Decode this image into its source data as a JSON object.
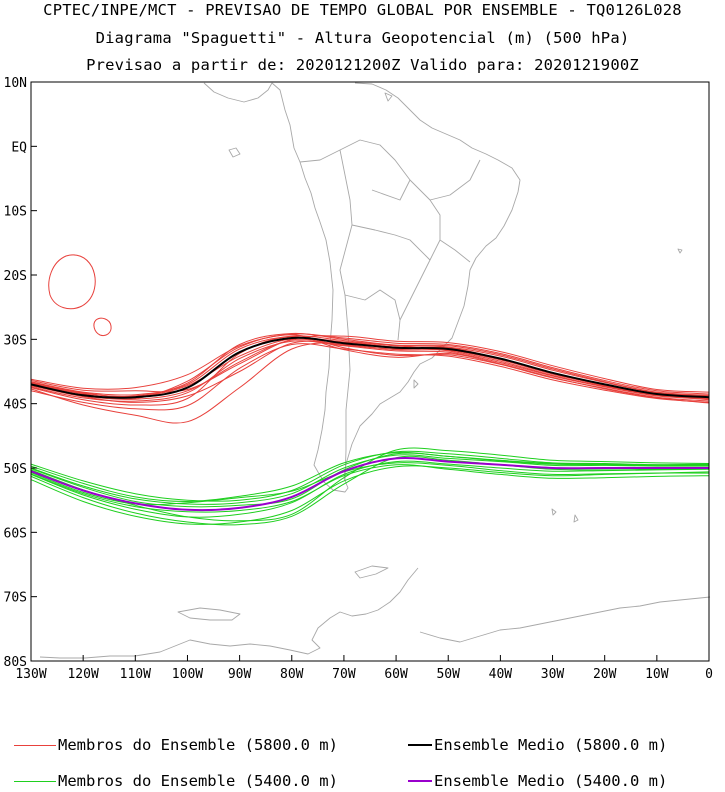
{
  "titles": {
    "line1": "CPTEC/INPE/MCT - PREVISAO DE TEMPO GLOBAL POR ENSEMBLE - TQ0126L028",
    "line2": "Diagrama \"Spaguetti\" - Altura Geopotencial (m) (500 hPa)",
    "line3": "Previsao a partir de: 2020121200Z  Valido para: 2020121900Z"
  },
  "axes": {
    "lat_ticks": [
      "10N",
      "EQ",
      "10S",
      "20S",
      "30S",
      "40S",
      "50S",
      "60S",
      "70S",
      "80S"
    ],
    "lat_values": [
      10,
      0,
      -10,
      -20,
      -30,
      -40,
      -50,
      -60,
      -70,
      -80
    ],
    "lon_ticks": [
      "130W",
      "120W",
      "110W",
      "100W",
      "90W",
      "80W",
      "70W",
      "60W",
      "50W",
      "40W",
      "30W",
      "20W",
      "10W",
      "0"
    ],
    "lon_values": [
      -130,
      -120,
      -110,
      -100,
      -90,
      -80,
      -70,
      -60,
      -50,
      -40,
      -30,
      -20,
      -10,
      0
    ],
    "lon_range": [
      -130,
      0
    ],
    "lat_range": [
      -80,
      10
    ]
  },
  "colors": {
    "member_5800": "#e8413c",
    "mean_5800": "#000000",
    "member_5400": "#1fcf1f",
    "mean_5400": "#9900cc",
    "coast": "#a8a8a8"
  },
  "legend": {
    "members_5800": "Membros do Ensemble (5800.0 m)",
    "mean_5800": "Ensemble Medio (5800.0 m)",
    "members_5400": "Membros do Ensemble (5400.0 m)",
    "mean_5400": "Ensemble Medio (5400.0 m)"
  },
  "chart_data": {
    "type": "line",
    "x": [
      -130,
      -120,
      -110,
      -100,
      -90,
      -80,
      -70,
      -60,
      -50,
      -40,
      -30,
      -20,
      -10,
      0
    ],
    "series": [
      {
        "name": "Ensemble Medio (5800.0 m)",
        "values": [
          -37,
          -38.7,
          -39,
          -37.5,
          -32,
          -29.8,
          -30.6,
          -31.3,
          -31.5,
          -33,
          -35.2,
          -37,
          -38.5,
          -39
        ]
      },
      {
        "name": "Ensemble Medio (5400.0 m)",
        "values": [
          -50.5,
          -53.5,
          -55.5,
          -56.5,
          -56.2,
          -54.5,
          -50.5,
          -48.5,
          -49,
          -49.5,
          -50,
          -50,
          -50,
          -50
        ]
      }
    ],
    "members_5800": [
      [
        -36.6,
        -38.2,
        -38.6,
        -37,
        -31.5,
        -29.5,
        -30.2,
        -31,
        -31.2,
        -32.6,
        -34.8,
        -36.7,
        -38.3,
        -38.8
      ],
      [
        -37.4,
        -39.1,
        -39.6,
        -38.3,
        -33,
        -30.3,
        -31,
        -31.8,
        -32,
        -33.6,
        -35.7,
        -37.4,
        -38.8,
        -39.3
      ],
      [
        -36.2,
        -37.6,
        -37.5,
        -35.5,
        -31,
        -29.2,
        -29.8,
        -30.6,
        -30.8,
        -32.2,
        -34.4,
        -36.4,
        -38,
        -38.5
      ],
      [
        -38,
        -39.8,
        -40.8,
        -40.3,
        -34.5,
        -30.8,
        -31.5,
        -32.3,
        -32.6,
        -34.2,
        -36.3,
        -37.9,
        -39.2,
        -39.8
      ],
      [
        -37.7,
        -40.2,
        -41.8,
        -42.8,
        -37.5,
        -31.5,
        -30.5,
        -31,
        -31.8,
        -33.4,
        -35.6,
        -37.3,
        -38.7,
        -39.2
      ],
      [
        -36.9,
        -38.5,
        -39.2,
        -36.5,
        -31.2,
        -29.3,
        -31.3,
        -32.5,
        -32.4,
        -33.9,
        -36,
        -37.6,
        -39,
        -39.6
      ],
      [
        -36.4,
        -37.9,
        -38,
        -37.8,
        -33.8,
        -30,
        -29.5,
        -30.3,
        -30.5,
        -31.9,
        -34.1,
        -36.1,
        -37.8,
        -38.2
      ],
      [
        -37.2,
        -38.9,
        -39.8,
        -38.8,
        -35,
        -30.6,
        -30.8,
        -31.6,
        -31.7,
        -33.2,
        -35.4,
        -37.1,
        -38.6,
        -39.4
      ],
      [
        -37.5,
        -39.4,
        -40.2,
        -39.2,
        -32.2,
        -29.6,
        -31.6,
        -32.8,
        -32.2,
        -33.8,
        -35.9,
        -37.7,
        -39.1,
        -39.9
      ],
      [
        -36.8,
        -38.4,
        -38.8,
        -36.8,
        -30.8,
        -29.1,
        -30,
        -30.9,
        -31,
        -32.4,
        -34.6,
        -36.6,
        -38.2,
        -38.7
      ],
      [
        -37.1,
        -38.8,
        -39.3,
        -38,
        -33.5,
        -30.1,
        -30.9,
        -31.5,
        -31.3,
        -33,
        -35.2,
        -37,
        -38.5,
        -39.1
      ],
      [
        -36.7,
        -38.3,
        -38.9,
        -37.2,
        -32.6,
        -29.9,
        -30.4,
        -31.2,
        -31.6,
        -33.1,
        -35.3,
        -37.2,
        -38.6,
        -39
      ]
    ],
    "members_5400": [
      [
        -50,
        -52.8,
        -54.8,
        -55.6,
        -55.4,
        -54,
        -50,
        -48,
        -48.5,
        -49,
        -49.6,
        -49.6,
        -49.7,
        -49.7
      ],
      [
        -51,
        -54.2,
        -56.4,
        -57.6,
        -57.2,
        -55.4,
        -51,
        -49,
        -49.4,
        -50,
        -50.5,
        -50.4,
        -50.3,
        -50.2
      ],
      [
        -49.4,
        -52,
        -54,
        -55,
        -55,
        -53.5,
        -49.5,
        -47.5,
        -47.8,
        -48.5,
        -49.2,
        -49.3,
        -49.5,
        -49.5
      ],
      [
        -51.8,
        -55.2,
        -57.5,
        -58.7,
        -58.4,
        -56.6,
        -52,
        -49.8,
        -50,
        -50.7,
        -51.2,
        -51,
        -50.8,
        -50.6
      ],
      [
        -50.3,
        -53.4,
        -55.8,
        -57.6,
        -58.2,
        -57.2,
        -51.5,
        -47.2,
        -47.3,
        -48,
        -48.8,
        -49,
        -49.2,
        -49.3
      ],
      [
        -50.7,
        -53.8,
        -55.6,
        -55.4,
        -54.6,
        -53.6,
        -50.6,
        -49.2,
        -49.6,
        -50.4,
        -51,
        -50.9,
        -50.8,
        -50.8
      ],
      [
        -49.7,
        -52.4,
        -54.5,
        -55.2,
        -54.4,
        -52.8,
        -49.2,
        -47.6,
        -48.2,
        -48.9,
        -49.4,
        -49.5,
        -49.6,
        -49.6
      ],
      [
        -51.3,
        -54.6,
        -57,
        -58.4,
        -58.8,
        -57.5,
        -52.5,
        -48.4,
        -48.8,
        -49.5,
        -50.2,
        -50.3,
        -50.2,
        -50.1
      ],
      [
        -50.9,
        -54,
        -56,
        -56.8,
        -56.6,
        -55.2,
        -51.2,
        -49.5,
        -50.2,
        -51,
        -51.6,
        -51.5,
        -51.3,
        -51.2
      ],
      [
        -50.1,
        -53,
        -55.2,
        -56,
        -55.8,
        -54.8,
        -50.3,
        -47.8,
        -48.2,
        -48.8,
        -49.3,
        -49.4,
        -49.5,
        -49.4
      ]
    ]
  }
}
